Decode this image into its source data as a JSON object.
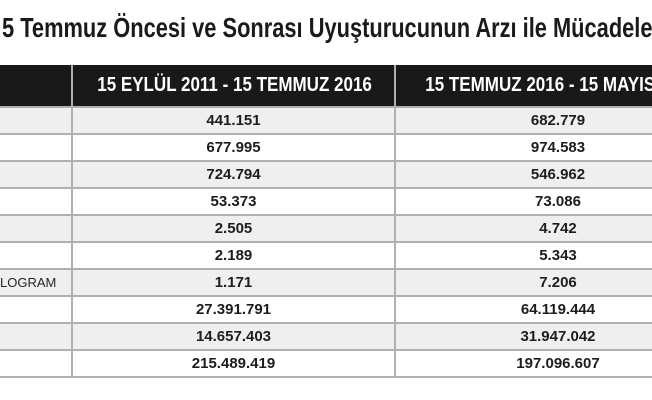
{
  "title": {
    "text": "5 Temmuz Öncesi ve Sonrası Uyuşturucunun Arzı ile Mücadele"
  },
  "table": {
    "header": {
      "col1": "",
      "col2": "15 EYLÜL 2011 - 15 TEMMUZ 2016",
      "col3": "15 TEMMUZ 2016 - 15 MAYIS"
    },
    "rows": [
      {
        "label": "",
        "before": "441.151",
        "after": "682.779"
      },
      {
        "label": "",
        "before": "677.995",
        "after": "974.583"
      },
      {
        "label": "",
        "before": "724.794",
        "after": "546.962"
      },
      {
        "label": "",
        "before": "53.373",
        "after": "73.086"
      },
      {
        "label": "",
        "before": "2.505",
        "after": "4.742"
      },
      {
        "label": "",
        "before": "2.189",
        "after": "5.343"
      },
      {
        "label": "LOGRAM",
        "before": "1.171",
        "after": "7.206"
      },
      {
        "label": "",
        "before": "27.391.791",
        "after": "64.119.444"
      },
      {
        "label": "",
        "before": "14.657.403",
        "after": "31.947.042"
      },
      {
        "label": "",
        "before": "215.489.419",
        "after": "197.096.607"
      }
    ]
  },
  "colors": {
    "header_bg": "#191919",
    "header_text": "#ffffff",
    "stripe_row": "#efefef",
    "base_row": "#ffffff",
    "border": "#b0b0b0",
    "text": "#1a1a1a"
  },
  "chart_data": {
    "type": "table",
    "title": "5 Temmuz Öncesi ve Sonrası Uyuşturucunun Arzı ile Mücadele",
    "columns": [
      "",
      "15 EYLÜL 2011 - 15 TEMMUZ 2016",
      "15 TEMMUZ 2016 - 15 MAYIS"
    ],
    "rows": [
      [
        "",
        "441.151",
        "682.779"
      ],
      [
        "",
        "677.995",
        "974.583"
      ],
      [
        "",
        "724.794",
        "546.962"
      ],
      [
        "",
        "53.373",
        "73.086"
      ],
      [
        "",
        "2.505",
        "4.742"
      ],
      [
        "",
        "2.189",
        "5.343"
      ],
      [
        "LOGRAM",
        "1.171",
        "7.206"
      ],
      [
        "",
        "27.391.791",
        "64.119.444"
      ],
      [
        "",
        "14.657.403",
        "31.947.042"
      ],
      [
        "",
        "215.489.419",
        "197.096.607"
      ]
    ],
    "layout": "left label column and right header clipped at image edges; rows striped"
  }
}
